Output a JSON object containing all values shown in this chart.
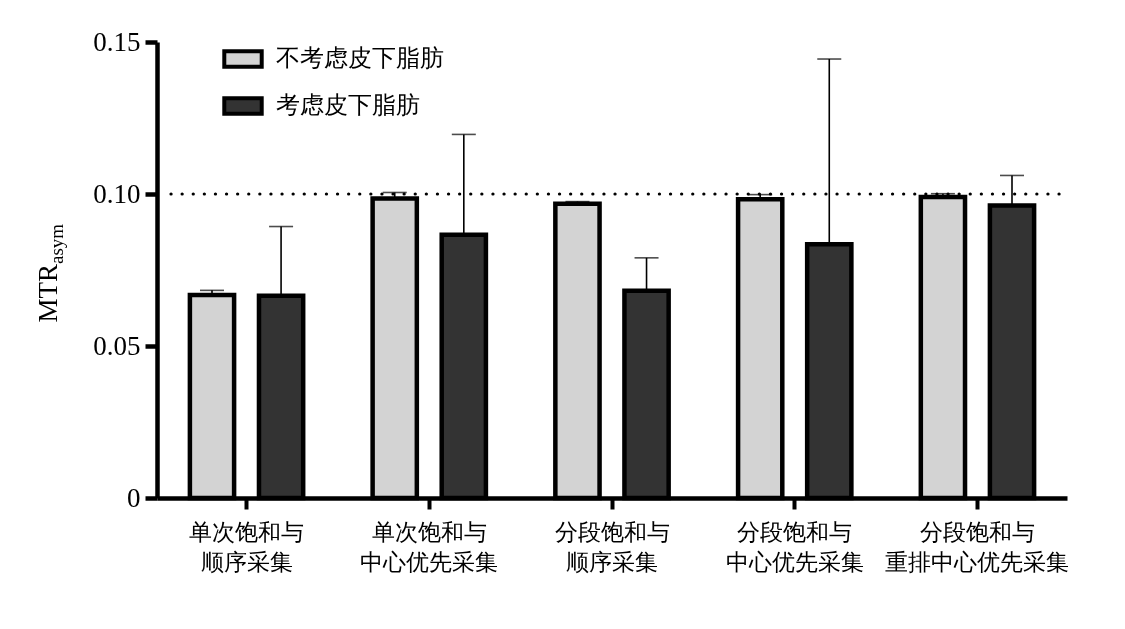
{
  "chart_data": {
    "type": "bar",
    "ylabel": "MTR$_{asym}$",
    "categories": [
      "单次饱和与顺序采集",
      "单次饱和与中心优先采集",
      "分段饱和与顺序采集",
      "分段饱和与中心优先采集",
      "分段饱和与重排中心优先采集"
    ],
    "series": [
      {
        "name": "不考虑皮下脂肪",
        "color": "#d3d3d3",
        "values": [
          0.0668,
          0.0985,
          0.0968,
          0.0983,
          0.099
        ],
        "errors": [
          [
            0.0668,
            0.0683
          ],
          [
            0.0985,
            0.1005
          ],
          [
            0.0968,
            0.0975
          ],
          [
            0.0983,
            0.0998
          ],
          [
            0.099,
            0.1001
          ]
        ]
      },
      {
        "name": "考虑皮下脂肪",
        "color": "#333333",
        "values": [
          0.0665,
          0.0866,
          0.0682,
          0.0835,
          0.0962
        ],
        "errors": [
          [
            0.0665,
            0.0893
          ],
          [
            0.0866,
            0.1196
          ],
          [
            0.0682,
            0.079
          ],
          [
            0.0835,
            0.1444
          ],
          [
            0.0962,
            0.1061
          ]
        ]
      }
    ],
    "ylim": [
      0,
      0.15
    ],
    "yticks": [
      0,
      0.05,
      {
        "value": 0.1,
        "label": "0.10"
      },
      0.15
    ],
    "ref_lines": [
      {
        "axis": "y",
        "value": 0.1,
        "line_style": "dotted"
      }
    ],
    "legend": "top left",
    "grid": false
  }
}
